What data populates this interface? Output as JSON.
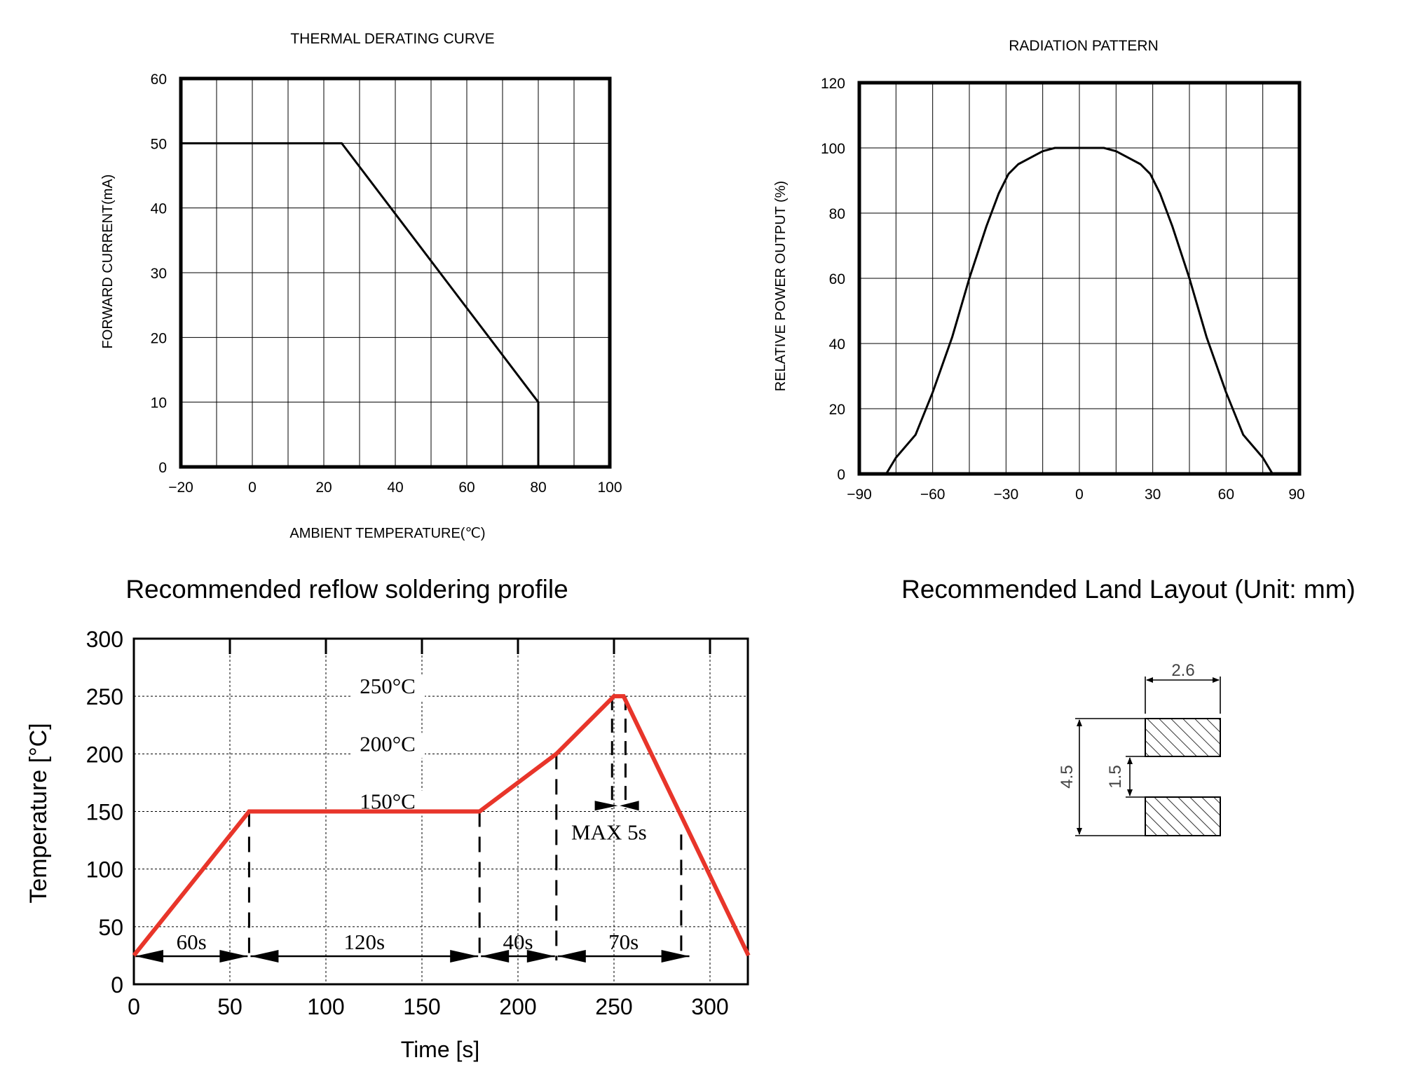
{
  "colors": {
    "profile_line": "#e8352a",
    "ink": "#000000"
  },
  "chart_data": [
    {
      "id": "thermal",
      "type": "line",
      "title": "THERMAL DERATING CURVE",
      "xlabel": "AMBIENT TEMPERATURE(℃)",
      "ylabel": "FORWARD CURRENT(mA)",
      "xlim": [
        -20,
        100
      ],
      "ylim": [
        0,
        60
      ],
      "xticks": [
        -20,
        0,
        20,
        40,
        60,
        80,
        100
      ],
      "xtick_labels": [
        "−20",
        "0",
        "20",
        "40",
        "60",
        "80",
        "100"
      ],
      "yticks": [
        0,
        10,
        20,
        30,
        40,
        50,
        60
      ],
      "ytick_labels": [
        "0",
        "10",
        "20",
        "30",
        "40",
        "50",
        "60"
      ],
      "grid": true,
      "series": [
        {
          "x": [
            -20,
            25,
            80,
            80
          ],
          "y": [
            50,
            50,
            10,
            0
          ]
        }
      ]
    },
    {
      "id": "radiation",
      "type": "line",
      "title": "RADIATION PATTERN",
      "xlabel": "",
      "ylabel": "RELATIVE POWER OUTPUT (%)",
      "xlim": [
        -90,
        90
      ],
      "ylim": [
        0,
        120
      ],
      "xticks": [
        -90,
        -60,
        -30,
        0,
        30,
        60,
        90
      ],
      "xtick_labels": [
        "−90",
        "−60",
        "−30",
        "0",
        "30",
        "60",
        "90"
      ],
      "yticks": [
        0,
        20,
        40,
        60,
        80,
        100,
        120
      ],
      "ytick_labels": [
        "0",
        "20",
        "40",
        "60",
        "80",
        "100",
        "120"
      ],
      "grid": true,
      "series": [
        {
          "x": [
            -79,
            -75,
            -67,
            -60,
            -52,
            -45,
            -38,
            -33,
            -29,
            -25,
            -20,
            -15,
            -10,
            -5,
            0,
            5,
            10,
            15,
            20,
            25,
            29,
            33,
            38,
            45,
            52,
            60,
            67,
            75,
            79
          ],
          "y": [
            0,
            5,
            12,
            25,
            42,
            60,
            76,
            86,
            92,
            95,
            97,
            99,
            100,
            100,
            100,
            100,
            100,
            99,
            97,
            95,
            92,
            86,
            76,
            60,
            42,
            25,
            12,
            5,
            0
          ]
        }
      ]
    },
    {
      "id": "reflow",
      "type": "line",
      "title": "Recommended reflow soldering profile",
      "xlabel": "Time [s]",
      "ylabel": "Temperature [°C]",
      "xlim": [
        0,
        320
      ],
      "ylim": [
        0,
        300
      ],
      "xticks": [
        0,
        50,
        100,
        150,
        200,
        250,
        300
      ],
      "xtick_labels": [
        "0",
        "50",
        "100",
        "150",
        "200",
        "250",
        "300"
      ],
      "yticks": [
        0,
        50,
        100,
        150,
        200,
        250,
        300
      ],
      "ytick_labels": [
        "0",
        "50",
        "100",
        "150",
        "200",
        "250",
        "300"
      ],
      "grid": true,
      "series": [
        {
          "x": [
            0,
            60,
            180,
            220,
            250,
            255,
            320
          ],
          "y": [
            25,
            150,
            150,
            200,
            250,
            250,
            25
          ]
        }
      ],
      "temp_labels": [
        {
          "text": "250°C",
          "y": 250
        },
        {
          "text": "200°C",
          "y": 200
        },
        {
          "text": "150°C",
          "y": 150
        }
      ],
      "intervals": [
        {
          "label": "60s",
          "from": 0,
          "to": 60
        },
        {
          "label": "120s",
          "from": 60,
          "to": 180
        },
        {
          "label": "40s",
          "from": 180,
          "to": 220
        },
        {
          "label": "70s",
          "from": 220,
          "to": 290
        }
      ],
      "max_label": "MAX 5s"
    }
  ],
  "land_layout": {
    "title": "Recommended Land Layout (Unit: mm)",
    "width_label": "2.6",
    "height_label": "4.5",
    "gap_label": "1.5"
  }
}
